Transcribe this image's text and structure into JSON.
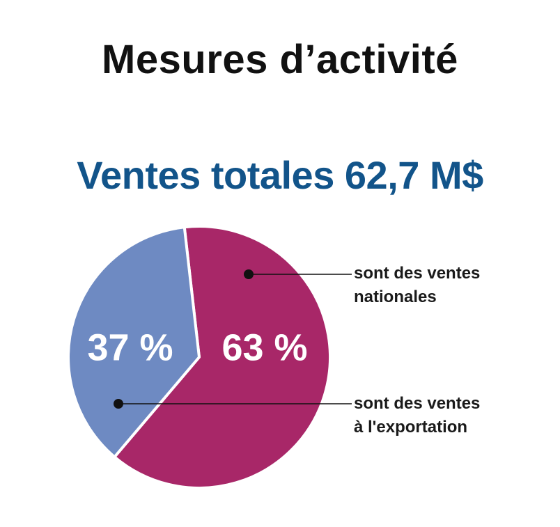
{
  "title": "Mesures d’activité",
  "subtitle": "Ventes totales 62,7 M$",
  "colors": {
    "title": "#111111",
    "subtitle": "#12548a",
    "domestic": "#a82768",
    "export": "#6e8ac2"
  },
  "chart_data": {
    "type": "pie",
    "slices": [
      {
        "label": "sont des ventes nationales",
        "value": 63,
        "display": "63 %",
        "color": "#a82768",
        "callout_lines": [
          "sont des ventes",
          "nationales"
        ]
      },
      {
        "label": "sont des ventes à l'exportation",
        "value": 37,
        "display": "37 %",
        "color": "#6e8ac2",
        "callout_lines": [
          "sont des ventes",
          "à l'exportation"
        ]
      }
    ],
    "legend": "callouts-right"
  }
}
